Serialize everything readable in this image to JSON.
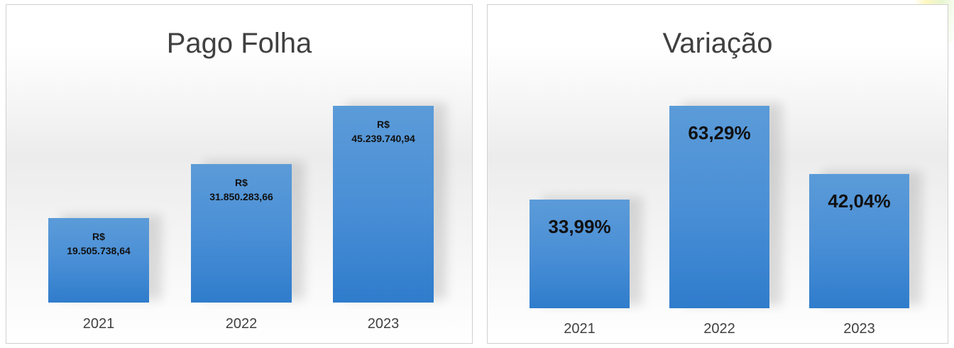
{
  "chart_data": [
    {
      "type": "bar",
      "title": "Pago Folha",
      "categories": [
        "2021",
        "2022",
        "2023"
      ],
      "values": [
        19505738.64,
        31850283.66,
        45239740.94
      ],
      "value_labels": [
        "R$ 19.505.738,64",
        "R$ 31.850.283,66",
        "R$ 45.239.740,94"
      ],
      "color": "#4a8fd6"
    },
    {
      "type": "bar",
      "title": "Variação",
      "categories": [
        "2021",
        "2022",
        "2023"
      ],
      "values": [
        33.99,
        63.29,
        42.04
      ],
      "value_labels": [
        "33,99%",
        "63,29%",
        "42,04%"
      ],
      "color": "#4a8fd6"
    }
  ]
}
